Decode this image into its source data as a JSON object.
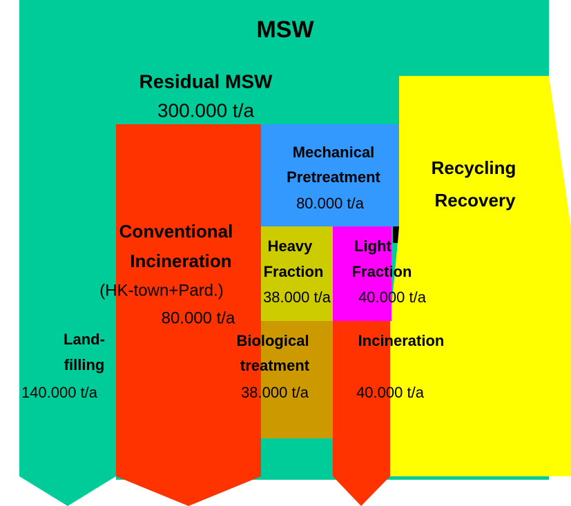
{
  "title": "MSW",
  "residual": {
    "label": "Residual MSW",
    "amount": "300.000 t/a"
  },
  "nodes": [
    {
      "lines": [
        "Mechanical",
        "Pretreatment"
      ],
      "amount": "80.000 t/a"
    },
    {
      "lines": [
        "Recycling",
        "Recovery"
      ]
    },
    {
      "lines": [
        "Conventional",
        "Incineration"
      ],
      "note": "(HK-town+Pard.)",
      "amount": "80.000 t/a"
    },
    {
      "lines": [
        "Heavy",
        "Fraction"
      ],
      "amount": "38.000 t/a"
    },
    {
      "lines": [
        "Light",
        "Fraction"
      ],
      "amount": "40.000 t/a"
    },
    {
      "lines": [
        "Land-",
        "filling"
      ],
      "amount": "140.000 t/a"
    },
    {
      "lines": [
        "Biological",
        "treatment"
      ],
      "amount": "38.000 t/a"
    },
    {
      "lines": [
        "Incineration"
      ],
      "amount": "40.000 t/a"
    }
  ]
}
